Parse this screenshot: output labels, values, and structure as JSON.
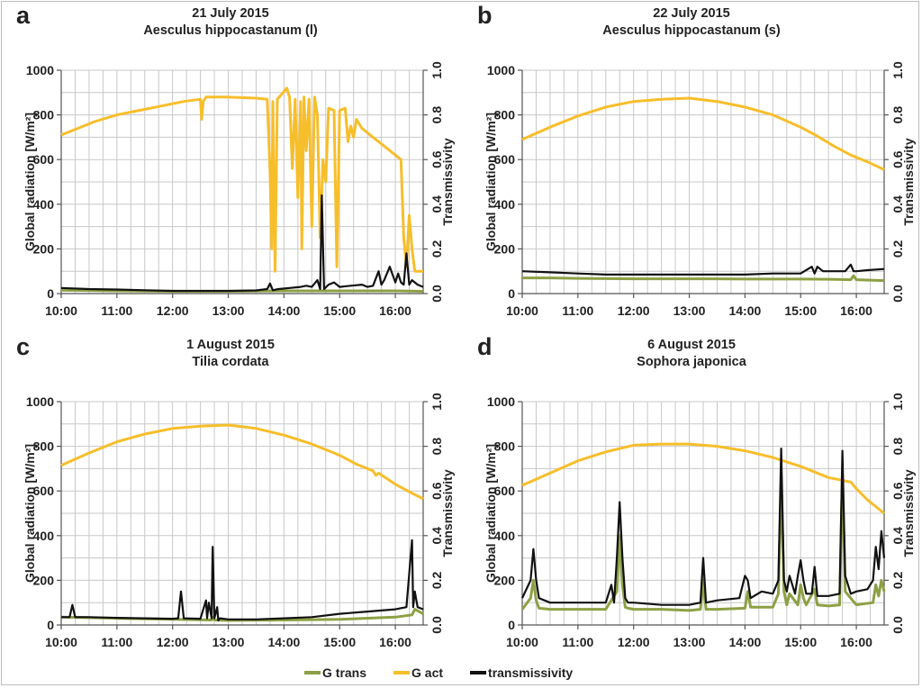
{
  "legend": {
    "items": [
      {
        "label": "G trans",
        "color": "#8da045"
      },
      {
        "label": "G act",
        "color": "#f7be2b"
      },
      {
        "label": "transmissivity",
        "color": "#111111"
      }
    ]
  },
  "chart_data": [
    {
      "type": "line",
      "panel_label": "a",
      "title": "21 July 2015",
      "subtitle": "Aesculus hippocastanum (l)",
      "xlabel": "",
      "ylabel": "Global radiation [W/m²]",
      "y2label": "Transmissivity",
      "xticks": [
        "10:00",
        "11:00",
        "12:00",
        "13:00",
        "14:00",
        "15:00",
        "16:00"
      ],
      "xlim": [
        10.0,
        16.5
      ],
      "ylim": [
        0,
        1000
      ],
      "y2lim": [
        0,
        1.0
      ],
      "yticks": [
        "0",
        "200",
        "400",
        "600",
        "800",
        "1000"
      ],
      "y2ticks": [
        "0.0",
        "0.2",
        "0.4",
        "0.6",
        "0.8",
        "1.0"
      ],
      "grid": true,
      "series": [
        {
          "name": "G act",
          "color": "#f7be2b",
          "axis": "left",
          "x": [
            10.0,
            10.3,
            10.6,
            11.0,
            11.4,
            11.8,
            12.2,
            12.5,
            12.52,
            12.55,
            12.6,
            13.0,
            13.5,
            13.7,
            13.75,
            13.78,
            13.8,
            13.84,
            13.88,
            13.95,
            14.05,
            14.1,
            14.15,
            14.2,
            14.25,
            14.3,
            14.32,
            14.36,
            14.4,
            14.45,
            14.5,
            14.55,
            14.6,
            14.65,
            14.7,
            14.75,
            14.8,
            14.9,
            14.95,
            15.0,
            15.1,
            15.15,
            15.2,
            15.25,
            15.3,
            15.4,
            15.6,
            15.8,
            16.0,
            16.1,
            16.15,
            16.2,
            16.25,
            16.3,
            16.35,
            16.4,
            16.5
          ],
          "y": [
            710,
            740,
            770,
            800,
            820,
            840,
            860,
            870,
            780,
            860,
            880,
            880,
            875,
            870,
            550,
            200,
            860,
            100,
            870,
            890,
            920,
            880,
            560,
            870,
            430,
            860,
            200,
            880,
            640,
            870,
            300,
            880,
            800,
            250,
            600,
            500,
            830,
            820,
            120,
            820,
            830,
            680,
            750,
            700,
            780,
            740,
            700,
            660,
            620,
            600,
            250,
            120,
            350,
            200,
            100,
            100,
            100
          ]
        },
        {
          "name": "transmissivity",
          "color": "#111111",
          "axis": "right",
          "x": [
            10.0,
            10.5,
            11.0,
            11.5,
            12.0,
            12.5,
            13.0,
            13.5,
            13.7,
            13.75,
            13.8,
            13.9,
            14.1,
            14.3,
            14.4,
            14.5,
            14.6,
            14.65,
            14.68,
            14.72,
            14.8,
            14.9,
            15.0,
            15.2,
            15.4,
            15.5,
            15.6,
            15.7,
            15.75,
            15.8,
            15.9,
            16.0,
            16.05,
            16.1,
            16.15,
            16.2,
            16.25,
            16.3,
            16.4,
            16.5
          ],
          "y": [
            0.025,
            0.02,
            0.018,
            0.015,
            0.012,
            0.012,
            0.012,
            0.014,
            0.02,
            0.045,
            0.015,
            0.02,
            0.025,
            0.03,
            0.035,
            0.03,
            0.06,
            0.02,
            0.44,
            0.02,
            0.04,
            0.05,
            0.03,
            0.035,
            0.04,
            0.03,
            0.035,
            0.1,
            0.04,
            0.06,
            0.12,
            0.05,
            0.09,
            0.05,
            0.04,
            0.18,
            0.04,
            0.06,
            0.04,
            0.03
          ]
        },
        {
          "name": "G trans",
          "color": "#8da045",
          "axis": "left",
          "x": [
            10.0,
            11.0,
            12.0,
            13.0,
            14.0,
            15.0,
            16.0,
            16.5
          ],
          "y": [
            15,
            12,
            10,
            10,
            12,
            12,
            12,
            10
          ]
        }
      ]
    },
    {
      "type": "line",
      "panel_label": "b",
      "title": "22 July 2015",
      "subtitle": "Aesculus hippocastanum (s)",
      "xlabel": "",
      "ylabel": "Global radiation [W/m²]",
      "y2label": "Transmissivity",
      "xticks": [
        "10:00",
        "11:00",
        "12:00",
        "13:00",
        "14:00",
        "15:00",
        "16:00"
      ],
      "xlim": [
        10.0,
        16.5
      ],
      "ylim": [
        0,
        1000
      ],
      "y2lim": [
        0,
        1.0
      ],
      "yticks": [
        "0",
        "200",
        "400",
        "600",
        "800",
        "1000"
      ],
      "y2ticks": [
        "0.0",
        "0.2",
        "0.4",
        "0.6",
        "0.8",
        "1.0"
      ],
      "grid": true,
      "series": [
        {
          "name": "G act",
          "color": "#f7be2b",
          "axis": "left",
          "x": [
            10.0,
            10.5,
            11.0,
            11.5,
            12.0,
            12.5,
            13.0,
            13.5,
            14.0,
            14.5,
            15.0,
            15.3,
            15.6,
            15.9,
            16.2,
            16.5
          ],
          "y": [
            690,
            745,
            795,
            835,
            860,
            870,
            875,
            860,
            835,
            800,
            745,
            705,
            660,
            620,
            590,
            555
          ]
        },
        {
          "name": "transmissivity",
          "color": "#111111",
          "axis": "right",
          "x": [
            10.0,
            10.5,
            11.0,
            11.5,
            12.0,
            12.5,
            13.0,
            13.5,
            14.0,
            14.5,
            15.0,
            15.2,
            15.25,
            15.3,
            15.4,
            15.6,
            15.8,
            15.9,
            15.95,
            16.0,
            16.2,
            16.5
          ],
          "y": [
            0.1,
            0.095,
            0.09,
            0.085,
            0.085,
            0.085,
            0.085,
            0.085,
            0.085,
            0.09,
            0.09,
            0.12,
            0.09,
            0.12,
            0.1,
            0.1,
            0.1,
            0.13,
            0.1,
            0.1,
            0.105,
            0.11
          ]
        },
        {
          "name": "G trans",
          "color": "#8da045",
          "axis": "left",
          "x": [
            10.0,
            10.5,
            11.0,
            11.5,
            12.0,
            12.5,
            13.0,
            13.5,
            14.0,
            14.5,
            15.0,
            15.5,
            15.9,
            15.95,
            16.0,
            16.5
          ],
          "y": [
            70,
            70,
            68,
            67,
            66,
            66,
            66,
            66,
            65,
            65,
            65,
            64,
            62,
            80,
            62,
            58
          ]
        }
      ]
    },
    {
      "type": "line",
      "panel_label": "c",
      "title": "1 August 2015",
      "subtitle": "Tilia cordata",
      "xlabel": "",
      "ylabel": "Global radiation [W/m²]",
      "y2label": "Transmissivity",
      "xticks": [
        "10:00",
        "11:00",
        "12:00",
        "13:00",
        "14:00",
        "15:00",
        "16:00"
      ],
      "xlim": [
        10.0,
        16.5
      ],
      "ylim": [
        0,
        1000
      ],
      "y2lim": [
        0,
        1.0
      ],
      "yticks": [
        "0",
        "200",
        "400",
        "600",
        "800",
        "1000"
      ],
      "y2ticks": [
        "0.0",
        "0.2",
        "0.4",
        "0.6",
        "0.8",
        "1.0"
      ],
      "grid": true,
      "series": [
        {
          "name": "G act",
          "color": "#f7be2b",
          "axis": "left",
          "x": [
            10.0,
            10.5,
            11.0,
            11.5,
            12.0,
            12.5,
            13.0,
            13.5,
            14.0,
            14.5,
            15.0,
            15.3,
            15.6,
            15.65,
            15.7,
            16.0,
            16.3,
            16.5
          ],
          "y": [
            715,
            770,
            820,
            855,
            880,
            890,
            895,
            880,
            850,
            810,
            760,
            720,
            690,
            670,
            680,
            630,
            590,
            565
          ]
        },
        {
          "name": "transmissivity",
          "color": "#111111",
          "axis": "right",
          "x": [
            10.0,
            10.15,
            10.2,
            10.25,
            10.5,
            11.0,
            11.5,
            12.0,
            12.1,
            12.15,
            12.2,
            12.5,
            12.6,
            12.62,
            12.65,
            12.7,
            12.72,
            12.75,
            12.8,
            12.82,
            12.85,
            13.0,
            13.5,
            14.0,
            14.5,
            15.0,
            15.5,
            16.0,
            16.2,
            16.3,
            16.32,
            16.35,
            16.4,
            16.5
          ],
          "y": [
            0.035,
            0.035,
            0.09,
            0.035,
            0.035,
            0.032,
            0.03,
            0.028,
            0.03,
            0.15,
            0.03,
            0.028,
            0.11,
            0.03,
            0.1,
            0.03,
            0.35,
            0.03,
            0.08,
            0.02,
            0.03,
            0.025,
            0.025,
            0.03,
            0.035,
            0.05,
            0.06,
            0.07,
            0.08,
            0.38,
            0.08,
            0.15,
            0.08,
            0.07
          ]
        },
        {
          "name": "G trans",
          "color": "#8da045",
          "axis": "left",
          "x": [
            10.0,
            11.0,
            12.0,
            12.7,
            12.72,
            12.75,
            13.0,
            14.0,
            15.0,
            16.0,
            16.3,
            16.35,
            16.5
          ],
          "y": [
            35,
            30,
            25,
            22,
            35,
            22,
            20,
            22,
            25,
            35,
            45,
            70,
            50
          ]
        }
      ]
    },
    {
      "type": "line",
      "panel_label": "d",
      "title": "6 August 2015",
      "subtitle": "Sophora japonica",
      "xlabel": "",
      "ylabel": "Global radiation [W/m²]",
      "y2label": "Transmissivity",
      "xticks": [
        "10:00",
        "11:00",
        "12:00",
        "13:00",
        "14:00",
        "15:00",
        "16:00"
      ],
      "xlim": [
        10.0,
        16.5
      ],
      "ylim": [
        0,
        1000
      ],
      "y2lim": [
        0,
        1.0
      ],
      "yticks": [
        "0",
        "200",
        "400",
        "600",
        "800",
        "1000"
      ],
      "y2ticks": [
        "0.0",
        "0.2",
        "0.4",
        "0.6",
        "0.8",
        "1.0"
      ],
      "grid": true,
      "series": [
        {
          "name": "G act",
          "color": "#f7be2b",
          "axis": "left",
          "x": [
            10.0,
            10.5,
            11.0,
            11.5,
            12.0,
            12.5,
            13.0,
            13.5,
            14.0,
            14.5,
            15.0,
            15.5,
            15.9,
            16.0,
            16.2,
            16.4,
            16.5
          ],
          "y": [
            625,
            680,
            735,
            775,
            805,
            810,
            810,
            800,
            780,
            750,
            710,
            660,
            640,
            610,
            560,
            520,
            500
          ]
        },
        {
          "name": "transmissivity",
          "color": "#111111",
          "axis": "right",
          "x": [
            10.0,
            10.15,
            10.2,
            10.25,
            10.3,
            10.5,
            11.0,
            11.5,
            11.6,
            11.65,
            11.7,
            11.75,
            11.8,
            11.85,
            11.9,
            12.0,
            12.5,
            13.0,
            13.2,
            13.25,
            13.3,
            13.5,
            13.9,
            14.0,
            14.05,
            14.1,
            14.3,
            14.5,
            14.6,
            14.65,
            14.7,
            14.75,
            14.8,
            14.9,
            14.95,
            15.0,
            15.05,
            15.1,
            15.2,
            15.25,
            15.3,
            15.5,
            15.7,
            15.75,
            15.8,
            15.9,
            16.0,
            16.2,
            16.3,
            16.35,
            16.4,
            16.45,
            16.5
          ],
          "y": [
            0.12,
            0.2,
            0.34,
            0.2,
            0.12,
            0.1,
            0.1,
            0.1,
            0.18,
            0.1,
            0.3,
            0.55,
            0.3,
            0.12,
            0.1,
            0.1,
            0.09,
            0.09,
            0.1,
            0.3,
            0.1,
            0.11,
            0.12,
            0.22,
            0.2,
            0.12,
            0.15,
            0.14,
            0.2,
            0.79,
            0.2,
            0.15,
            0.22,
            0.14,
            0.22,
            0.29,
            0.2,
            0.14,
            0.14,
            0.26,
            0.13,
            0.13,
            0.14,
            0.78,
            0.22,
            0.14,
            0.15,
            0.16,
            0.2,
            0.35,
            0.25,
            0.42,
            0.3
          ]
        },
        {
          "name": "G trans",
          "color": "#8da045",
          "axis": "left",
          "x": [
            10.0,
            10.15,
            10.2,
            10.25,
            10.3,
            10.5,
            11.0,
            11.5,
            11.7,
            11.75,
            11.8,
            11.85,
            11.9,
            12.0,
            12.5,
            13.0,
            13.2,
            13.25,
            13.3,
            13.5,
            14.0,
            14.05,
            14.1,
            14.5,
            14.6,
            14.65,
            14.7,
            14.75,
            14.8,
            14.95,
            15.0,
            15.05,
            15.1,
            15.25,
            15.3,
            15.5,
            15.7,
            15.75,
            15.8,
            16.0,
            16.3,
            16.35,
            16.4,
            16.45,
            16.5
          ],
          "y": [
            70,
            120,
            200,
            110,
            75,
            70,
            70,
            70,
            150,
            400,
            180,
            80,
            75,
            70,
            70,
            65,
            70,
            200,
            70,
            70,
            75,
            150,
            80,
            80,
            140,
            660,
            150,
            90,
            140,
            90,
            180,
            120,
            90,
            160,
            90,
            85,
            90,
            680,
            150,
            90,
            100,
            180,
            130,
            200,
            150
          ]
        }
      ]
    }
  ]
}
